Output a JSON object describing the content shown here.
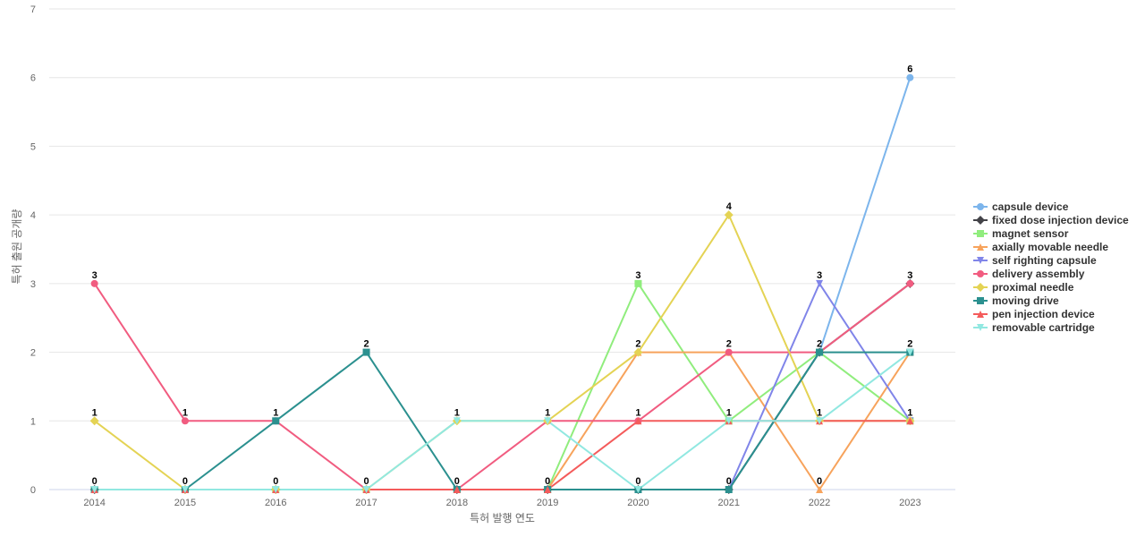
{
  "chart_data": {
    "type": "line",
    "xlabel": "특허 발행 연도",
    "ylabel": "특허 출원 공개량",
    "x": [
      "2014",
      "2015",
      "2016",
      "2017",
      "2018",
      "2019",
      "2020",
      "2021",
      "2022",
      "2023"
    ],
    "ylim": [
      0,
      7
    ],
    "yticks": [
      "0",
      "1",
      "2",
      "3",
      "4",
      "5",
      "6",
      "7"
    ],
    "grid": true,
    "legend_position": "right",
    "series": [
      {
        "name": "capsule device",
        "color": "#7cb5ec",
        "marker": "circle",
        "values": [
          0,
          0,
          0,
          0,
          0,
          0,
          0,
          0,
          2,
          6
        ]
      },
      {
        "name": "fixed dose injection device",
        "color": "#434348",
        "marker": "diamond",
        "values": [
          0,
          0,
          0,
          0,
          0,
          0,
          0,
          0,
          2,
          3
        ]
      },
      {
        "name": "magnet sensor",
        "color": "#90ed7d",
        "marker": "square",
        "values": [
          0,
          0,
          0,
          0,
          0,
          0,
          3,
          1,
          2,
          1
        ]
      },
      {
        "name": "axially movable needle",
        "color": "#f7a35c",
        "marker": "triangle",
        "values": [
          0,
          0,
          0,
          0,
          0,
          0,
          2,
          2,
          0,
          2
        ]
      },
      {
        "name": "self righting capsule",
        "color": "#8085e9",
        "marker": "triangle-down",
        "values": [
          0,
          0,
          0,
          0,
          0,
          0,
          0,
          0,
          3,
          1
        ]
      },
      {
        "name": "delivery assembly",
        "color": "#f15c80",
        "marker": "circle",
        "values": [
          3,
          1,
          1,
          0,
          0,
          1,
          1,
          2,
          2,
          3
        ]
      },
      {
        "name": "proximal needle",
        "color": "#e4d354",
        "marker": "diamond",
        "values": [
          1,
          0,
          0,
          0,
          1,
          1,
          2,
          4,
          1,
          1
        ]
      },
      {
        "name": "moving drive",
        "color": "#2b908f",
        "marker": "square",
        "values": [
          0,
          0,
          1,
          2,
          0,
          0,
          0,
          0,
          2,
          2
        ]
      },
      {
        "name": "pen injection device",
        "color": "#f45b5b",
        "marker": "triangle",
        "values": [
          0,
          0,
          0,
          0,
          0,
          0,
          1,
          1,
          1,
          1
        ]
      },
      {
        "name": "removable cartridge",
        "color": "#91e8e1",
        "marker": "triangle-down",
        "values": [
          0,
          0,
          0,
          0,
          1,
          1,
          0,
          1,
          1,
          2
        ]
      }
    ],
    "data_labels": [
      {
        "x": "2014",
        "value": "3",
        "color": "#f15c80"
      },
      {
        "x": "2014",
        "value": "1",
        "color": "#e4d354"
      },
      {
        "x": "2014",
        "value": "0",
        "color": "#2b908f"
      },
      {
        "x": "2015",
        "value": "1",
        "color": "#f15c80"
      },
      {
        "x": "2015",
        "value": "0",
        "color": "#2b908f"
      },
      {
        "x": "2016",
        "value": "1",
        "color": "#2b908f"
      },
      {
        "x": "2016",
        "value": "0",
        "color": "#91e8e1"
      },
      {
        "x": "2017",
        "value": "2",
        "color": "#2b908f"
      },
      {
        "x": "2017",
        "value": "0",
        "color": "#91e8e1"
      },
      {
        "x": "2018",
        "value": "1",
        "color": "#91e8e1"
      },
      {
        "x": "2018",
        "value": "0",
        "color": "#f15c80"
      },
      {
        "x": "2019",
        "value": "1",
        "color": "#91e8e1"
      },
      {
        "x": "2019",
        "value": "0",
        "color": "#f45b5b"
      },
      {
        "x": "2020",
        "value": "3",
        "color": "#90ed7d"
      },
      {
        "x": "2020",
        "value": "2",
        "color": "#e4d354"
      },
      {
        "x": "2020",
        "value": "1",
        "color": "#f45b5b"
      },
      {
        "x": "2020",
        "value": "0",
        "color": "#91e8e1"
      },
      {
        "x": "2021",
        "value": "4",
        "color": "#e4d354"
      },
      {
        "x": "2021",
        "value": "2",
        "color": "#f15c80"
      },
      {
        "x": "2021",
        "value": "1",
        "color": "#91e8e1"
      },
      {
        "x": "2021",
        "value": "0",
        "color": "#2b908f"
      },
      {
        "x": "2022",
        "value": "3",
        "color": "#8085e9"
      },
      {
        "x": "2022",
        "value": "2",
        "color": "#2b908f"
      },
      {
        "x": "2022",
        "value": "1",
        "color": "#91e8e1"
      },
      {
        "x": "2022",
        "value": "0",
        "color": "#f7a35c"
      },
      {
        "x": "2023",
        "value": "6",
        "color": "#7cb5ec"
      },
      {
        "x": "2023",
        "value": "3",
        "color": "#f15c80"
      },
      {
        "x": "2023",
        "value": "2",
        "color": "#91e8e1"
      },
      {
        "x": "2023",
        "value": "1",
        "color": "#f45b5b"
      }
    ]
  }
}
